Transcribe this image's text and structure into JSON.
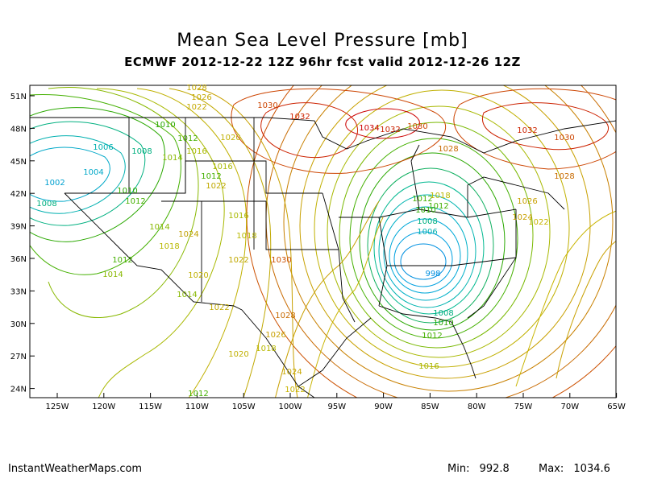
{
  "title": "Mean Sea Level Pressure [mb]",
  "subtitle": "ECMWF 2012-12-22 12Z 96hr fcst valid 2012-12-26 12Z",
  "footer": {
    "site": "InstantWeatherMaps.com",
    "min_label": "Min:",
    "min_value": "992.8",
    "max_label": "Max:",
    "max_value": "1034.6"
  },
  "lat_labels": [
    "51N",
    "48N",
    "45N",
    "42N",
    "39N",
    "36N",
    "33N",
    "30N",
    "27N",
    "24N"
  ],
  "lon_labels": [
    "125W",
    "120W",
    "115W",
    "110W",
    "105W",
    "100W",
    "95W",
    "90W",
    "85W",
    "80W",
    "75W",
    "70W",
    "65W"
  ],
  "contour_labels": [
    {
      "t": "1028",
      "c": "#c4a800"
    },
    {
      "t": "1026",
      "c": "#c4a800"
    },
    {
      "t": "1022",
      "c": "#c4a800"
    },
    {
      "t": "1030",
      "c": "#cc4400"
    },
    {
      "t": "1032",
      "c": "#cc2200"
    },
    {
      "t": "1034",
      "c": "#cc0000"
    },
    {
      "t": "1032",
      "c": "#cc2200"
    },
    {
      "t": "1030",
      "c": "#cc4400"
    },
    {
      "t": "1032",
      "c": "#cc2200"
    },
    {
      "t": "1030",
      "c": "#cc4400"
    },
    {
      "t": "1028",
      "c": "#c86a00"
    },
    {
      "t": "1028",
      "c": "#c86a00"
    },
    {
      "t": "1026",
      "c": "#c8a000"
    },
    {
      "t": "1024",
      "c": "#c8a000"
    },
    {
      "t": "1022",
      "c": "#c8b400"
    },
    {
      "t": "1010",
      "c": "#2aa800"
    },
    {
      "t": "1012",
      "c": "#44b000"
    },
    {
      "t": "1006",
      "c": "#00b0b0"
    },
    {
      "t": "1008",
      "c": "#00b080"
    },
    {
      "t": "1004",
      "c": "#00a8c8"
    },
    {
      "t": "1002",
      "c": "#00a0d0"
    },
    {
      "t": "1008",
      "c": "#00b080"
    },
    {
      "t": "1010",
      "c": "#2aa800"
    },
    {
      "t": "1012",
      "c": "#44b000"
    },
    {
      "t": "1014",
      "c": "#88b800"
    },
    {
      "t": "1018",
      "c": "#b8b800"
    },
    {
      "t": "1020",
      "c": "#c0b000"
    },
    {
      "t": "1022",
      "c": "#c0a800"
    },
    {
      "t": "1024",
      "c": "#c0a000"
    },
    {
      "t": "1012",
      "c": "#44b000"
    },
    {
      "t": "1014",
      "c": "#88b800"
    },
    {
      "t": "1016",
      "c": "#a8b800"
    },
    {
      "t": "1020",
      "c": "#c0b000"
    },
    {
      "t": "1022",
      "c": "#c0a800"
    },
    {
      "t": "1016",
      "c": "#a8b800"
    },
    {
      "t": "1018",
      "c": "#b8b800"
    },
    {
      "t": "1022",
      "c": "#c0a800"
    },
    {
      "t": "1014",
      "c": "#88b800"
    },
    {
      "t": "1012",
      "c": "#44b000"
    },
    {
      "t": "1030",
      "c": "#cc5000"
    },
    {
      "t": "1028",
      "c": "#c86a00"
    },
    {
      "t": "1026",
      "c": "#c8a000"
    },
    {
      "t": "1024",
      "c": "#c8a800"
    },
    {
      "t": "1022",
      "c": "#c8b400"
    },
    {
      "t": "1020",
      "c": "#c0b000"
    },
    {
      "t": "1018",
      "c": "#b8b800"
    },
    {
      "t": "1012",
      "c": "#44b000"
    },
    {
      "t": "1010",
      "c": "#2aa800"
    },
    {
      "t": "1008",
      "c": "#00b080"
    },
    {
      "t": "1006",
      "c": "#00b0b0"
    },
    {
      "t": "998",
      "c": "#0090e0"
    },
    {
      "t": "1008",
      "c": "#00b080"
    },
    {
      "t": "1010",
      "c": "#2aa800"
    },
    {
      "t": "1012",
      "c": "#44b000"
    },
    {
      "t": "1016",
      "c": "#a8b800"
    },
    {
      "t": "1018",
      "c": "#b8b800"
    },
    {
      "t": "1012",
      "c": "#44b000"
    },
    {
      "t": "1014",
      "c": "#88b800"
    },
    {
      "t": "1016",
      "c": "#a8b800"
    },
    {
      "t": "1012",
      "c": "#44b000"
    }
  ],
  "colors": {
    "frame": "#000000",
    "low_center": "#00a0ff",
    "high_center": "#cc0000",
    "background": "#ffffff"
  }
}
